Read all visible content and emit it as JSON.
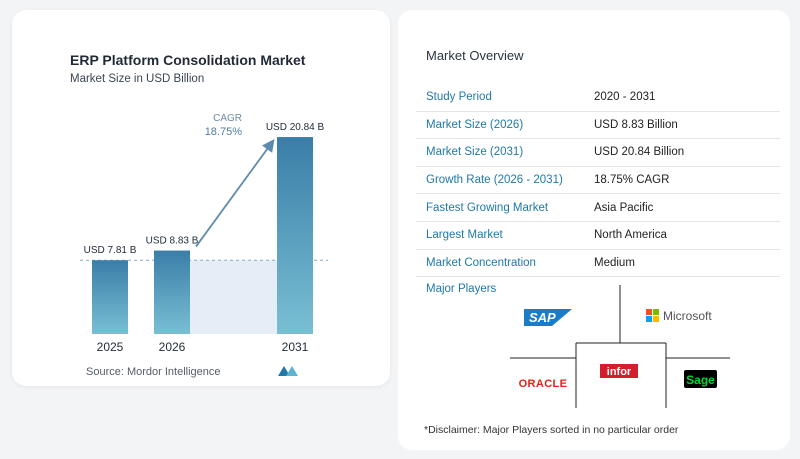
{
  "chart_card": {
    "title": "ERP Platform Consolidation Market",
    "subtitle": "Market Size in USD Billion",
    "source": "Source: Mordor Intelligence"
  },
  "chart_data": {
    "type": "bar",
    "title": "ERP Platform Consolidation Market",
    "subtitle": "Market Size in USD Billion",
    "categories": [
      "2025",
      "2026",
      "2031"
    ],
    "values": [
      7.81,
      8.83,
      20.84
    ],
    "data_labels": [
      "USD 7.81 B",
      "USD 8.83 B",
      "USD 20.84 B"
    ],
    "cagr_label": "CAGR",
    "cagr_value": "18.75%",
    "colors": {
      "bar_top": "#3a7ea8",
      "bar_bottom": "#79bfd3",
      "arrow": "#5c8bb0",
      "reference_fill": "#e5eef6",
      "reference_line": "#8fa9bf"
    }
  },
  "overview": {
    "title": "Market Overview",
    "rows": [
      {
        "key": "Study Period",
        "value": "2020 - 2031"
      },
      {
        "key": "Market Size (2026)",
        "value": "USD 8.83 Billion"
      },
      {
        "key": "Market Size (2031)",
        "value": "USD 20.84 Billion"
      },
      {
        "key": "Growth Rate (2026 - 2031)",
        "value": "18.75% CAGR"
      },
      {
        "key": "Fastest Growing Market",
        "value": "Asia Pacific"
      },
      {
        "key": "Largest Market",
        "value": "North America"
      },
      {
        "key": "Market Concentration",
        "value": "Medium"
      }
    ]
  },
  "players": {
    "title": "Major Players",
    "logos": {
      "sap": "SAP",
      "microsoft": "Microsoft",
      "oracle": "ORACLE",
      "infor": "infor",
      "sage": "Sage"
    }
  },
  "disclaimer": "*Disclaimer: Major Players sorted in no particular order",
  "colors": {
    "key_text": "#1f78a8",
    "divider": "#e1e6eb"
  }
}
